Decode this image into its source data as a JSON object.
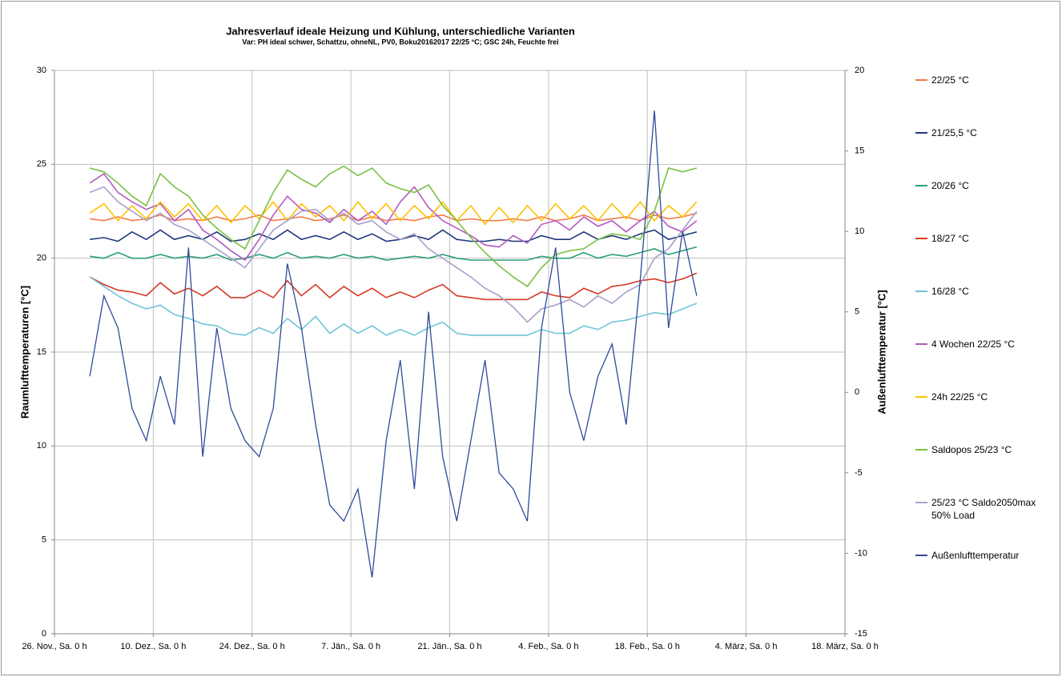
{
  "chart_data": {
    "type": "line",
    "title": "Jahresverlauf ideale Heizung und Kühlung, unterschiedliche Varianten",
    "subtitle": "Var: PH ideal schwer, Schattzu, ohneNL, PV0, Boku20162017 22/25 °C; GSC 24h, Feuchte frei",
    "y_label": "Raumlufttemperaturen [°C]",
    "y2_label": "Außenlufttemperatur [°C]",
    "grid": true,
    "legend": "right",
    "xlim": [
      0,
      112
    ],
    "xticks": [
      {
        "value": 0,
        "label": "26. Nov., Sa. 0 h"
      },
      {
        "value": 14,
        "label": "10. Dez., Sa. 0 h"
      },
      {
        "value": 28,
        "label": "24. Dez., Sa. 0 h"
      },
      {
        "value": 42,
        "label": "7. Jän., Sa. 0 h"
      },
      {
        "value": 56,
        "label": "21. Jän., Sa. 0 h"
      },
      {
        "value": 70,
        "label": "4. Feb., Sa. 0 h"
      },
      {
        "value": 84,
        "label": "18. Feb., Sa. 0 h"
      },
      {
        "value": 98,
        "label": "4. März, Sa. 0 h"
      },
      {
        "value": 112,
        "label": "18. März, Sa. 0 h"
      }
    ],
    "ylim": [
      0,
      30
    ],
    "yticks": [
      0,
      5,
      10,
      15,
      20,
      25,
      30
    ],
    "y2lim": [
      -15,
      20
    ],
    "y2ticks": [
      -15,
      -10,
      -5,
      0,
      5,
      10,
      15,
      20
    ],
    "x": [
      5,
      7,
      9,
      11,
      13,
      15,
      17,
      19,
      21,
      23,
      25,
      27,
      29,
      31,
      33,
      35,
      37,
      39,
      41,
      43,
      45,
      47,
      49,
      51,
      53,
      55,
      57,
      59,
      61,
      63,
      65,
      67,
      69,
      71,
      73,
      75,
      77,
      79,
      81,
      83,
      85,
      87,
      89,
      91
    ],
    "series": [
      {
        "name": "22/25 °C",
        "color": "#f07c4a",
        "values": [
          22.1,
          22.0,
          22.2,
          22.0,
          22.1,
          22.3,
          22.0,
          22.1,
          22.0,
          22.2,
          22.0,
          22.1,
          22.3,
          22.0,
          22.1,
          22.2,
          22.0,
          22.1,
          22.3,
          22.0,
          22.2,
          22.0,
          22.1,
          22.0,
          22.2,
          22.3,
          22.0,
          22.1,
          22.0,
          22.0,
          22.1,
          22.0,
          22.2,
          22.0,
          22.1,
          22.3,
          22.0,
          22.1,
          22.2,
          22.0,
          22.3,
          22.1,
          22.2,
          22.4
        ]
      },
      {
        "name": "21/25,5 °C",
        "color": "#1f3a7a",
        "values": [
          21.0,
          21.1,
          20.9,
          21.4,
          21.0,
          21.5,
          21.0,
          21.2,
          21.0,
          21.4,
          20.9,
          21.0,
          21.3,
          21.0,
          21.5,
          21.0,
          21.2,
          21.0,
          21.4,
          21.0,
          21.3,
          20.9,
          21.0,
          21.2,
          21.0,
          21.5,
          21.0,
          20.9,
          20.9,
          21.0,
          20.9,
          20.9,
          21.2,
          21.0,
          21.0,
          21.4,
          21.0,
          21.2,
          21.0,
          21.3,
          21.5,
          21.0,
          21.2,
          21.4
        ]
      },
      {
        "name": "20/26 °C",
        "color": "#2a9f78",
        "values": [
          20.1,
          20.0,
          20.3,
          20.0,
          20.0,
          20.2,
          20.0,
          20.1,
          20.0,
          20.2,
          19.9,
          20.0,
          20.2,
          20.0,
          20.3,
          20.0,
          20.1,
          20.0,
          20.2,
          20.0,
          20.1,
          19.9,
          20.0,
          20.1,
          20.0,
          20.2,
          20.0,
          19.9,
          19.9,
          19.9,
          19.9,
          19.9,
          20.1,
          20.0,
          20.0,
          20.3,
          20.0,
          20.2,
          20.1,
          20.3,
          20.5,
          20.2,
          20.4,
          20.6
        ]
      },
      {
        "name": "18/27 °C",
        "color": "#d63a25",
        "values": [
          19.0,
          18.6,
          18.3,
          18.2,
          18.0,
          18.7,
          18.1,
          18.4,
          18.0,
          18.5,
          17.9,
          17.9,
          18.3,
          17.9,
          18.8,
          18.0,
          18.6,
          17.9,
          18.5,
          18.0,
          18.4,
          17.9,
          18.2,
          17.9,
          18.3,
          18.6,
          18.0,
          17.9,
          17.8,
          17.8,
          17.8,
          17.8,
          18.2,
          18.0,
          17.9,
          18.4,
          18.1,
          18.5,
          18.6,
          18.8,
          18.9,
          18.7,
          18.9,
          19.2
        ]
      },
      {
        "name": "16/28 °C",
        "color": "#6fc5d6",
        "values": [
          19.0,
          18.5,
          18.0,
          17.6,
          17.3,
          17.5,
          17.0,
          16.8,
          16.5,
          16.4,
          16.0,
          15.9,
          16.3,
          16.0,
          16.8,
          16.2,
          16.9,
          16.0,
          16.5,
          16.0,
          16.4,
          15.9,
          16.2,
          15.9,
          16.3,
          16.6,
          16.0,
          15.9,
          15.9,
          15.9,
          15.9,
          15.9,
          16.2,
          16.0,
          16.0,
          16.4,
          16.2,
          16.6,
          16.7,
          16.9,
          17.1,
          17.0,
          17.3,
          17.6
        ]
      },
      {
        "name": "4 Wochen  22/25 °C",
        "color": "#b45cc0",
        "values": [
          24.0,
          24.5,
          23.5,
          23.0,
          22.6,
          22.9,
          22.0,
          22.6,
          21.5,
          21.0,
          20.4,
          19.9,
          21.0,
          22.3,
          23.3,
          22.6,
          22.4,
          21.9,
          22.6,
          22.0,
          22.5,
          21.8,
          23.0,
          23.8,
          22.7,
          22.0,
          21.6,
          21.2,
          20.7,
          20.6,
          21.2,
          20.8,
          21.8,
          22.0,
          21.5,
          22.2,
          21.7,
          22.0,
          21.4,
          22.0,
          22.5,
          21.7,
          21.4,
          22.0
        ]
      },
      {
        "name": "24h 22/25 °C",
        "color": "#ffc000",
        "values": [
          22.4,
          22.9,
          22.0,
          22.8,
          22.1,
          23.0,
          22.2,
          22.9,
          22.0,
          22.8,
          21.9,
          22.8,
          22.1,
          23.0,
          22.0,
          22.9,
          22.2,
          22.8,
          22.0,
          23.0,
          22.1,
          22.9,
          22.0,
          22.8,
          22.1,
          23.0,
          22.0,
          22.8,
          21.8,
          22.7,
          21.9,
          22.8,
          22.0,
          22.9,
          22.1,
          22.8,
          22.0,
          22.9,
          22.1,
          23.0,
          22.0,
          22.8,
          22.2,
          23.0
        ]
      },
      {
        "name": "Saldopos 25/23 °C",
        "color": "#7ac143",
        "values": [
          24.8,
          24.6,
          24.0,
          23.3,
          22.8,
          24.5,
          23.8,
          23.3,
          22.3,
          21.6,
          21.0,
          20.5,
          22.0,
          23.5,
          24.7,
          24.2,
          23.8,
          24.5,
          24.9,
          24.4,
          24.8,
          24.0,
          23.7,
          23.5,
          23.9,
          22.8,
          22.0,
          21.1,
          20.3,
          19.6,
          19.0,
          18.5,
          19.5,
          20.2,
          20.4,
          20.5,
          21.0,
          21.3,
          21.2,
          21.0,
          22.5,
          24.8,
          24.6,
          24.8
        ]
      },
      {
        "name": "25/23 °C Saldo2050max 50% Load",
        "color": "#a89fcb",
        "values": [
          23.5,
          23.8,
          23.0,
          22.5,
          22.0,
          22.4,
          21.8,
          21.5,
          21.0,
          20.5,
          20.0,
          19.5,
          20.5,
          21.5,
          22.0,
          22.5,
          22.6,
          22.0,
          22.4,
          21.8,
          22.0,
          21.4,
          21.0,
          21.3,
          20.5,
          20.0,
          19.5,
          19.0,
          18.4,
          18.0,
          17.4,
          16.6,
          17.3,
          17.5,
          17.8,
          17.4,
          18.0,
          17.6,
          18.2,
          18.6,
          20.0,
          20.5,
          21.5,
          22.5
        ]
      },
      {
        "name": "Außenlufttemperatur",
        "color": "#2f4a9a",
        "axis": "y2",
        "values": [
          1,
          6,
          4,
          -1,
          -3,
          1,
          -2,
          9,
          -4,
          4,
          -1,
          -3,
          -4,
          -1,
          8,
          4,
          -2,
          -7,
          -8,
          -6,
          -11.5,
          -3,
          2,
          -6,
          5,
          -4,
          -8,
          -3,
          2,
          -5,
          -6,
          -8,
          4,
          9,
          0,
          -3,
          1,
          3,
          -2,
          7,
          17.5,
          4,
          10,
          6
        ]
      }
    ]
  }
}
